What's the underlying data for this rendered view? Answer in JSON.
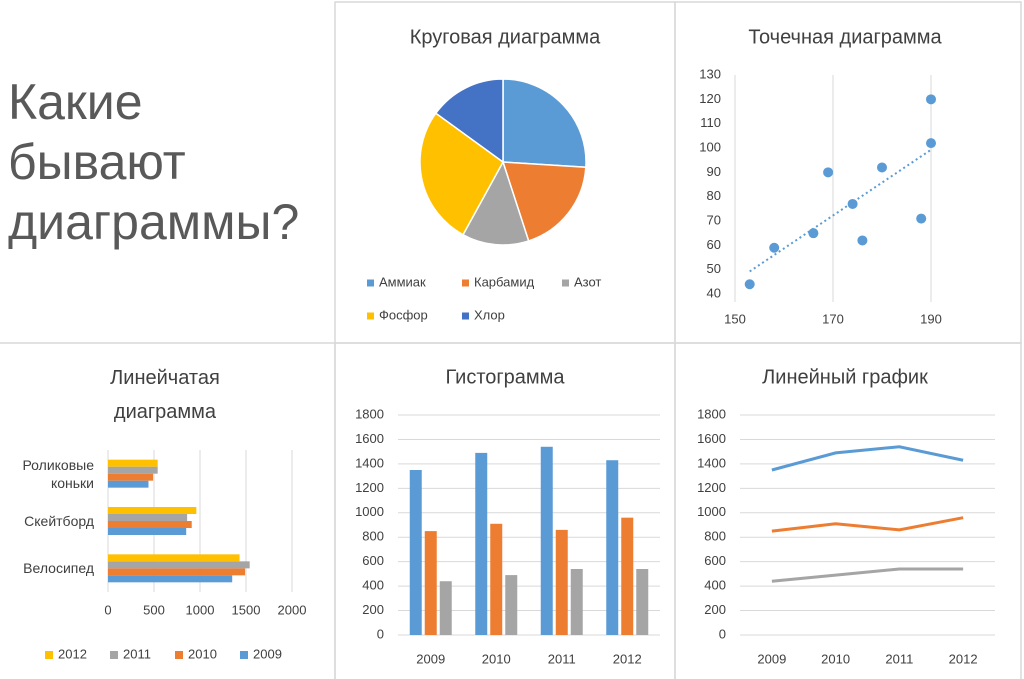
{
  "heading": "Какие бывают диаграммы?",
  "chart_data": [
    {
      "type": "pie",
      "title": "Круговая диаграмма",
      "categories": [
        "Аммиак",
        "Карбамид",
        "Азот",
        "Фосфор",
        "Хлор"
      ],
      "values": [
        26,
        19,
        13,
        27,
        15
      ],
      "colors": [
        "#5b9bd5",
        "#ed7d31",
        "#a5a5a5",
        "#ffc000",
        "#4472c4"
      ]
    },
    {
      "type": "scatter",
      "title": "Точечная диаграмма",
      "x": [
        153,
        158,
        166,
        169,
        174,
        176,
        180,
        188,
        190,
        190
      ],
      "values": [
        44,
        59,
        65,
        90,
        77,
        62,
        92,
        71,
        120,
        102
      ],
      "color": "#5b9bd5",
      "trendline": true,
      "xlim": [
        150,
        200
      ],
      "xticks": [
        150,
        170,
        190
      ],
      "ylim": [
        40,
        130
      ],
      "yticks": [
        40,
        50,
        60,
        70,
        80,
        90,
        100,
        110,
        120,
        130
      ],
      "grid": "x"
    },
    {
      "type": "bar",
      "orientation": "horizontal",
      "title": "Линейчатая диаграмма",
      "categories": [
        "Велосипед",
        "Скейтборд",
        "Роликовые коньки"
      ],
      "series": [
        {
          "name": "2009",
          "color": "#5b9bd5",
          "values": [
            1350,
            850,
            440
          ]
        },
        {
          "name": "2010",
          "color": "#ed7d31",
          "values": [
            1490,
            910,
            490
          ]
        },
        {
          "name": "2011",
          "color": "#a5a5a5",
          "values": [
            1540,
            860,
            540
          ]
        },
        {
          "name": "2012",
          "color": "#ffc000",
          "values": [
            1430,
            960,
            540
          ]
        }
      ],
      "xlim": [
        0,
        2000
      ],
      "xticks": [
        0,
        500,
        1000,
        1500,
        2000
      ],
      "grid": true
    },
    {
      "type": "bar",
      "orientation": "vertical",
      "title": "Гистограмма",
      "categories": [
        "2009",
        "2010",
        "2011",
        "2012"
      ],
      "series": [
        {
          "color": "#5b9bd5",
          "values": [
            1350,
            1490,
            1540,
            1430
          ]
        },
        {
          "color": "#ed7d31",
          "values": [
            850,
            910,
            860,
            960
          ]
        },
        {
          "color": "#a5a5a5",
          "values": [
            440,
            490,
            540,
            540
          ]
        }
      ],
      "ylim": [
        0,
        1800
      ],
      "yticks": [
        0,
        200,
        400,
        600,
        800,
        1000,
        1200,
        1400,
        1600,
        1800
      ],
      "grid": true
    },
    {
      "type": "line",
      "title": "Линейный график",
      "categories": [
        "2009",
        "2010",
        "2011",
        "2012"
      ],
      "series": [
        {
          "color": "#5b9bd5",
          "values": [
            1350,
            1490,
            1540,
            1430
          ]
        },
        {
          "color": "#ed7d31",
          "values": [
            850,
            910,
            860,
            960
          ]
        },
        {
          "color": "#a5a5a5",
          "values": [
            440,
            490,
            540,
            540
          ]
        }
      ],
      "ylim": [
        0,
        1800
      ],
      "yticks": [
        0,
        200,
        400,
        600,
        800,
        1000,
        1200,
        1400,
        1600,
        1800
      ],
      "grid": true
    }
  ]
}
